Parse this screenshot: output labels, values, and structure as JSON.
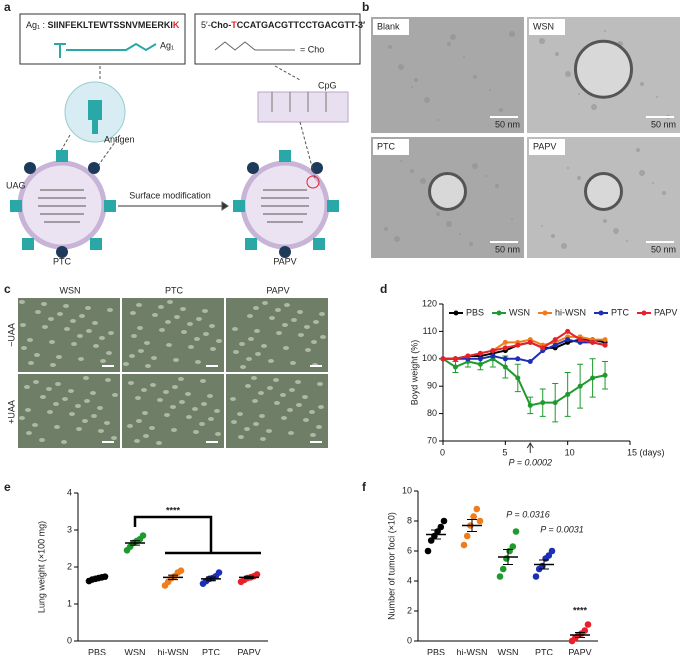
{
  "panel_a": {
    "label": "a",
    "antigen_prefix": "Ag₁ : ",
    "antigen_sequence": "SIINFEKLTEWTSSNVMEERKI",
    "antigen_end": "K",
    "ag_label": "Ag₁",
    "cpg_prime5": "5′-",
    "cpg_cho": "Cho-",
    "cpg_red": "T",
    "cpg_rest": "CCATGACGTTCCTGACGTT-3′",
    "cho_eq": "= Cho",
    "cpg": "CpG",
    "antigen": "Antigen",
    "uag": "UAG",
    "arrow_label": "Surface modification",
    "left": "PTC",
    "right": "PAPV"
  },
  "panel_b": {
    "label": "b",
    "images": [
      {
        "title": "Blank",
        "scale": "50 nm"
      },
      {
        "title": "WSN",
        "scale": "50 nm"
      },
      {
        "title": "PTC",
        "scale": "50 nm"
      },
      {
        "title": "PAPV",
        "scale": "50 nm"
      }
    ]
  },
  "panel_c": {
    "label": "c",
    "columns": [
      "WSN",
      "PTC",
      "PAPV"
    ],
    "rows": [
      "−UAA",
      "+UAA"
    ]
  },
  "chart_data": [
    {
      "type": "line",
      "label": "d",
      "y_label": "Boyd weight (%)",
      "x": [
        0,
        1,
        2,
        3,
        4,
        5,
        6,
        7,
        8,
        9,
        10,
        11,
        12,
        13
      ],
      "xlim": [
        0,
        15
      ],
      "xticks": [
        0,
        5,
        10,
        {
          "value": 15,
          "label": "15 (days)"
        }
      ],
      "ylim": [
        70,
        120
      ],
      "yticks": [
        70,
        80,
        90,
        100,
        110,
        120
      ],
      "series": [
        {
          "name": "PBS",
          "color": "#000000",
          "values": [
            100,
            100,
            101,
            101,
            102,
            103,
            105,
            106,
            104,
            104,
            106,
            107,
            107,
            106
          ]
        },
        {
          "name": "WSN",
          "color": "#1f9a2e",
          "values": [
            100,
            97,
            99,
            98,
            100,
            97,
            93,
            83,
            84,
            84,
            87,
            90,
            93,
            94
          ],
          "errors": [
            0,
            2,
            2,
            2,
            3,
            4,
            5,
            3,
            5,
            7,
            8,
            8,
            7,
            5
          ]
        },
        {
          "name": "hi-WSN",
          "color": "#f07c1a",
          "values": [
            100,
            100,
            101,
            102,
            103,
            106,
            106,
            107,
            105,
            106,
            108,
            108,
            107,
            107
          ]
        },
        {
          "name": "PTC",
          "color": "#1c2fb5",
          "values": [
            100,
            100,
            100,
            100,
            101,
            100,
            100,
            99,
            103,
            105,
            107,
            106,
            106,
            105
          ]
        },
        {
          "name": "PAPV",
          "color": "#e8202a",
          "values": [
            100,
            100,
            101,
            102,
            103,
            104,
            105,
            106,
            104,
            107,
            110,
            107,
            106,
            105
          ]
        }
      ],
      "annotation": "P = 0.0002"
    },
    {
      "type": "dot",
      "label": "e",
      "y_label": "Lung weight (×100 mg)",
      "categories": [
        "PBS",
        "WSN",
        "hi-WSN",
        "PTC",
        "PAPV"
      ],
      "colors": [
        "#000000",
        "#1f9a2e",
        "#f07c1a",
        "#1c2fb5",
        "#e8202a"
      ],
      "points": [
        [
          1.62,
          1.66,
          1.68,
          1.7,
          1.72,
          1.74
        ],
        [
          2.45,
          2.55,
          2.65,
          2.7,
          2.75,
          2.85
        ],
        [
          1.5,
          1.6,
          1.7,
          1.75,
          1.85,
          1.9
        ],
        [
          1.55,
          1.62,
          1.68,
          1.7,
          1.75,
          1.85
        ],
        [
          1.6,
          1.65,
          1.7,
          1.72,
          1.75,
          1.8
        ]
      ],
      "means": [
        1.68,
        2.65,
        1.72,
        1.68,
        1.72
      ],
      "sem": [
        0.02,
        0.06,
        0.06,
        0.05,
        0.03
      ],
      "ylim": [
        0,
        4
      ],
      "yticks": [
        0,
        1,
        2,
        3,
        4
      ],
      "annotation": "****"
    },
    {
      "type": "dot",
      "label": "f",
      "y_label": "Number of tumor foci (×10)",
      "categories": [
        "PBS",
        "hi-WSN",
        "WSN",
        "PTC",
        "PAPV"
      ],
      "colors": [
        "#000000",
        "#f07c1a",
        "#1f9a2e",
        "#1c2fb5",
        "#e8202a"
      ],
      "points": [
        [
          6.0,
          6.7,
          7.0,
          7.3,
          7.6,
          8.0
        ],
        [
          6.4,
          7.0,
          7.7,
          8.3,
          8.8,
          8.0
        ],
        [
          4.3,
          4.8,
          5.5,
          6.0,
          6.3,
          7.3
        ],
        [
          4.3,
          4.8,
          5.0,
          5.5,
          5.7,
          6.0
        ],
        [
          0.0,
          0.2,
          0.4,
          0.5,
          0.7,
          1.1
        ]
      ],
      "means": [
        7.1,
        7.7,
        5.6,
        5.1,
        0.4
      ],
      "sem": [
        0.3,
        0.4,
        0.5,
        0.3,
        0.17
      ],
      "ylim": [
        0,
        10
      ],
      "yticks": [
        0,
        2,
        4,
        6,
        8,
        10
      ],
      "annotations": [
        "P = 0.0316",
        "P = 0.0031",
        "****"
      ]
    }
  ]
}
